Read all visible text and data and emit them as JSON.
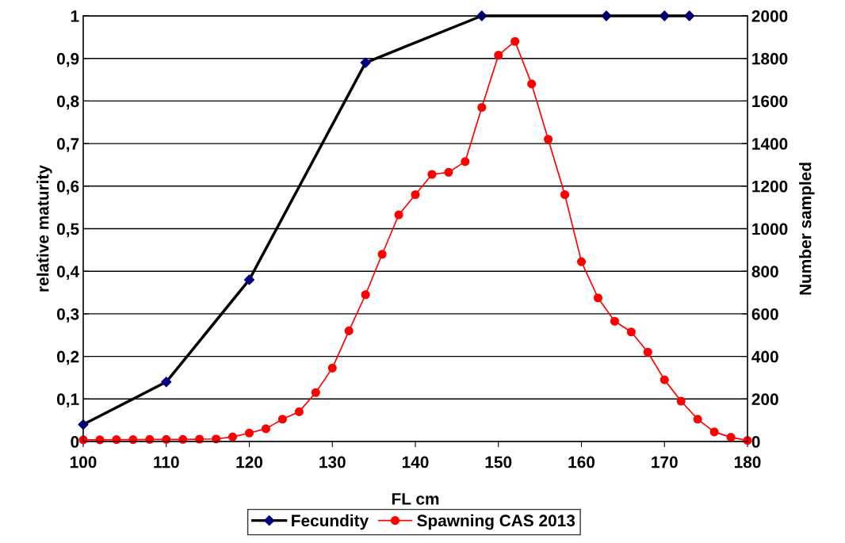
{
  "chart_data": {
    "type": "line",
    "xlabel": "FL cm",
    "ylabel": "relative maturity",
    "y2label": "Number sampled",
    "xlim": [
      100,
      180
    ],
    "xticks": [
      100,
      110,
      120,
      130,
      140,
      150,
      160,
      170,
      180
    ],
    "ylim": [
      0,
      1
    ],
    "yticks": [
      0,
      {
        "value": 0.1,
        "label": "0,1"
      },
      {
        "value": 0.2,
        "label": "0,2"
      },
      {
        "value": 0.3,
        "label": "0,3"
      },
      {
        "value": 0.4,
        "label": "0,4"
      },
      {
        "value": 0.5,
        "label": "0,5"
      },
      {
        "value": 0.6,
        "label": "0,6"
      },
      {
        "value": 0.7,
        "label": "0,7"
      },
      {
        "value": 0.8,
        "label": "0,8"
      },
      {
        "value": 0.9,
        "label": "0,9"
      },
      1
    ],
    "y2lim": [
      0,
      2000
    ],
    "y2ticks": [
      0,
      200,
      400,
      600,
      800,
      1000,
      1200,
      1400,
      1600,
      1800,
      2000
    ],
    "grid": "y",
    "legend": "bottom",
    "series": [
      {
        "name": "Fecundity",
        "color": "#000000",
        "colors": [
          "#000080",
          "#000080",
          "#000080",
          "#000080",
          "#000080",
          "#000080",
          "#000080",
          "#000080"
        ],
        "marker": "diamond",
        "x": [
          100,
          110,
          120,
          134,
          148,
          163,
          170,
          173
        ],
        "values": [
          0.04,
          0.14,
          0.38,
          0.89,
          1,
          1,
          1,
          1
        ]
      },
      {
        "name": "Spawning CAS 2013",
        "color": "#ff0000",
        "marker": "circle",
        "axis": "y2",
        "x": [
          100,
          102,
          104,
          106,
          108,
          110,
          112,
          114,
          116,
          118,
          120,
          122,
          124,
          126,
          128,
          130,
          132,
          134,
          136,
          138,
          140,
          142,
          144,
          146,
          148,
          150,
          152,
          154,
          156,
          158,
          160,
          162,
          164,
          166,
          168,
          170,
          172,
          174,
          176,
          178,
          180
        ],
        "values": [
          8,
          8,
          9,
          9,
          10,
          10,
          10,
          11,
          12,
          22,
          40,
          60,
          105,
          140,
          230,
          345,
          520,
          690,
          880,
          1065,
          1160,
          1255,
          1265,
          1315,
          1570,
          1815,
          1880,
          1680,
          1420,
          1160,
          845,
          675,
          565,
          515,
          420,
          290,
          190,
          105,
          45,
          20,
          5
        ]
      }
    ]
  }
}
